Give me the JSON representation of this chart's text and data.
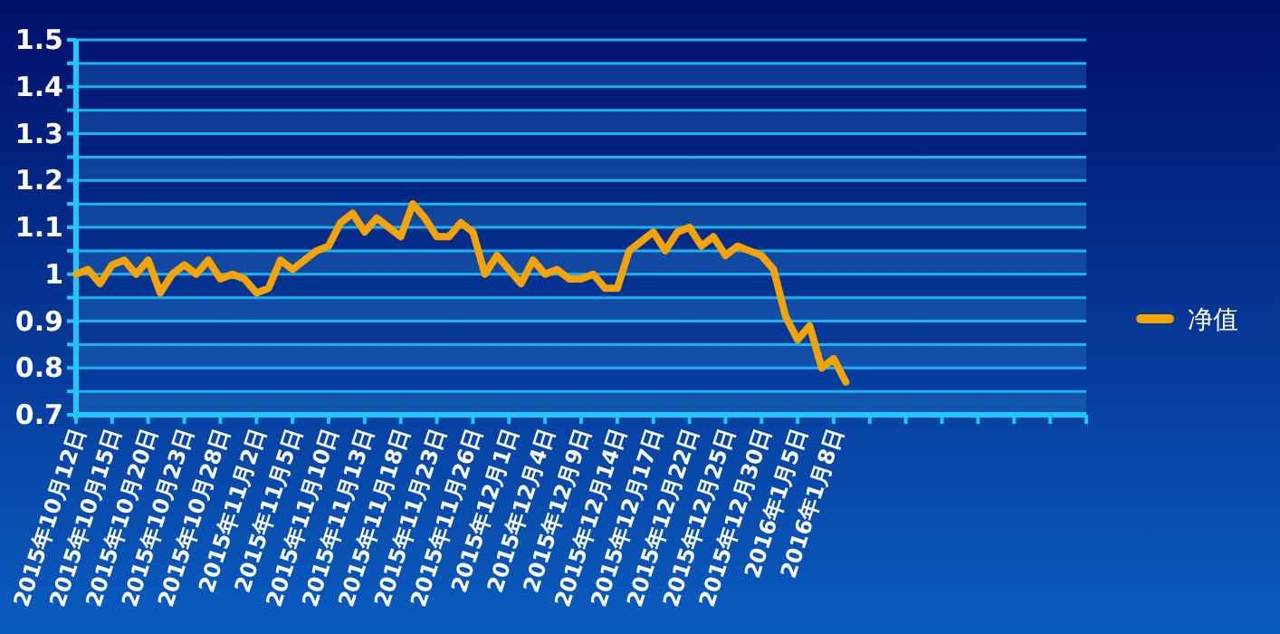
{
  "chart_data": {
    "type": "line",
    "categories": [
      "2015年10月12日",
      null,
      null,
      "2015年10月15日",
      null,
      null,
      "2015年10月20日",
      null,
      null,
      "2015年10月23日",
      null,
      null,
      "2015年10月28日",
      null,
      null,
      "2015年11月2日",
      null,
      null,
      "2015年11月5日",
      null,
      null,
      "2015年11月10日",
      null,
      null,
      "2015年11月13日",
      null,
      null,
      "2015年11月18日",
      null,
      null,
      "2015年11月23日",
      null,
      null,
      "2015年11月26日",
      null,
      null,
      "2015年12月1日",
      null,
      null,
      "2015年12月4日",
      null,
      null,
      "2015年12月9日",
      null,
      null,
      "2015年12月14日",
      null,
      null,
      "2015年12月17日",
      null,
      null,
      "2015年12月22日",
      null,
      null,
      "2015年12月25日",
      null,
      null,
      "2015年12月30日",
      null,
      null,
      "2016年1月5日",
      null,
      null,
      "2016年1月8日",
      null,
      null,
      null,
      null,
      null,
      null,
      null,
      null,
      null,
      null,
      null,
      null,
      null,
      null,
      null,
      null,
      null,
      null,
      null,
      null,
      null
    ],
    "series": [
      {
        "name": "净值",
        "color": "#f5a300",
        "values": [
          1.0,
          1.01,
          0.98,
          1.02,
          1.03,
          1.0,
          1.03,
          0.96,
          1.0,
          1.02,
          1.0,
          1.03,
          0.99,
          1.0,
          0.99,
          0.96,
          0.97,
          1.03,
          1.01,
          1.03,
          1.05,
          1.06,
          1.11,
          1.13,
          1.09,
          1.12,
          1.1,
          1.08,
          1.15,
          1.12,
          1.08,
          1.08,
          1.11,
          1.09,
          1.0,
          1.04,
          1.01,
          0.98,
          1.03,
          1.0,
          1.01,
          0.99,
          0.99,
          1.0,
          0.97,
          0.97,
          1.05,
          1.07,
          1.09,
          1.05,
          1.09,
          1.1,
          1.06,
          1.08,
          1.04,
          1.06,
          1.05,
          1.04,
          1.01,
          0.91,
          0.86,
          0.89,
          0.8,
          0.82,
          0.77,
          null,
          null,
          null,
          null,
          null,
          null,
          null,
          null,
          null,
          null,
          null,
          null,
          null,
          null,
          null,
          null,
          null,
          null,
          null,
          null
        ]
      }
    ],
    "ylim": [
      0.7,
      1.5
    ],
    "yticks": [
      0.7,
      {
        "value": 0.75,
        "label": null
      },
      0.8,
      {
        "value": 0.85,
        "label": null
      },
      0.9,
      {
        "value": 0.95,
        "label": null
      },
      1,
      {
        "value": 1.05,
        "label": null
      },
      1.1,
      {
        "value": 1.15,
        "label": null
      },
      1.2,
      {
        "value": 1.25,
        "label": null
      },
      1.3,
      {
        "value": 1.35,
        "label": null
      },
      1.4,
      {
        "value": 1.45,
        "label": null
      },
      1.5
    ],
    "bands": [
      {
        "axis": "y",
        "from": 0.7,
        "to": 0.75,
        "color": "#2a78c8"
      },
      {
        "axis": "y",
        "from": 0.8,
        "to": 0.85,
        "color": "#2a78c8"
      },
      {
        "axis": "y",
        "from": 0.9,
        "to": 0.95,
        "color": "#2a78c8"
      },
      {
        "axis": "y",
        "from": 1.0,
        "to": 1.05,
        "color": "#2a78c8"
      },
      {
        "axis": "y",
        "from": 1.1,
        "to": 1.15,
        "color": "#2a78c8"
      },
      {
        "axis": "y",
        "from": 1.2,
        "to": 1.25,
        "color": "#2a78c8"
      },
      {
        "axis": "y",
        "from": 1.3,
        "to": 1.35,
        "color": "#2a78c8"
      },
      {
        "axis": "y",
        "from": 1.4,
        "to": 1.45,
        "color": "#2a78c8"
      }
    ],
    "grid": "y",
    "legend": "right",
    "marker": "none",
    "line_style": "solid"
  }
}
